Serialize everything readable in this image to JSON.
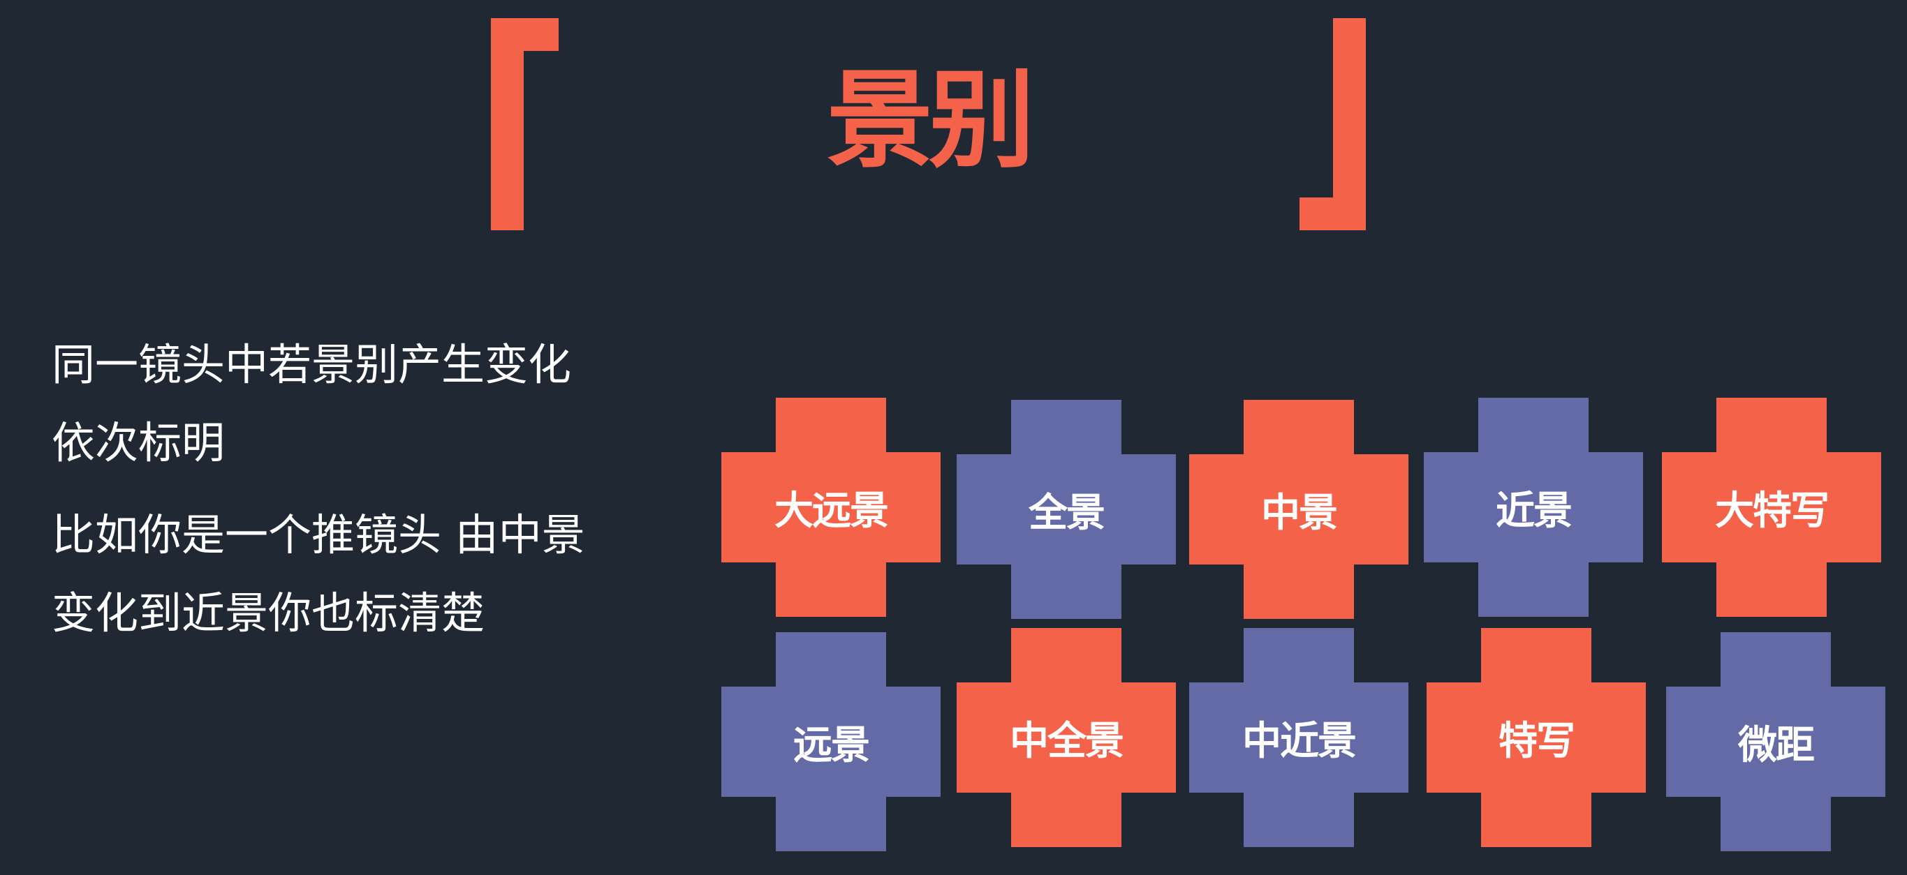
{
  "slide": {
    "title": "景别",
    "bracket_color": "#F4624A",
    "background_color": "#202833"
  },
  "description": {
    "paragraph1": [
      "同一镜头中若景别产生变化",
      "依次标明"
    ],
    "paragraph2": [
      "比如你是一个推镜头 由中景",
      "变化到近景你也标清楚"
    ]
  },
  "shot_sizes": {
    "colors": {
      "red": "#F4624A",
      "blue": "#646AA6"
    },
    "row1": [
      "大远景",
      "全景",
      "中景",
      "近景",
      "大特写"
    ],
    "row2": [
      "远景",
      "中全景",
      "中近景",
      "特写",
      "微距"
    ]
  }
}
